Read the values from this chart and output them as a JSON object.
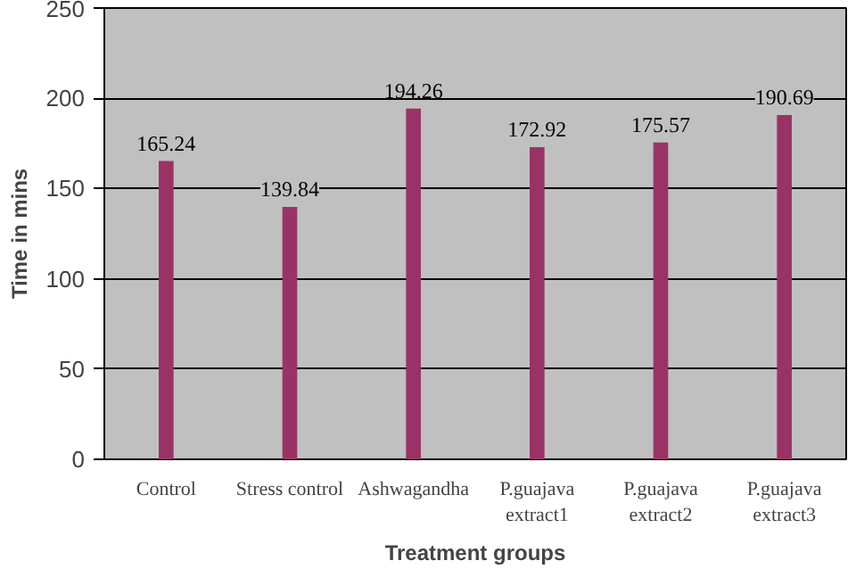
{
  "chart_data": {
    "type": "bar",
    "xlabel": "Treatment groups",
    "ylabel": "Time in mins",
    "categories": [
      "Control",
      "Stress control",
      "Ashwagandha",
      "P.guajava extract1",
      "P.guajava extract2",
      "P.guajava extract3"
    ],
    "values": [
      165.24,
      139.84,
      194.26,
      172.92,
      175.57,
      190.69
    ],
    "color": "#993366",
    "ylim": [
      0,
      250
    ],
    "yticks": [
      0,
      50,
      100,
      150,
      200,
      250
    ],
    "grid": "y",
    "data_labels": true
  }
}
